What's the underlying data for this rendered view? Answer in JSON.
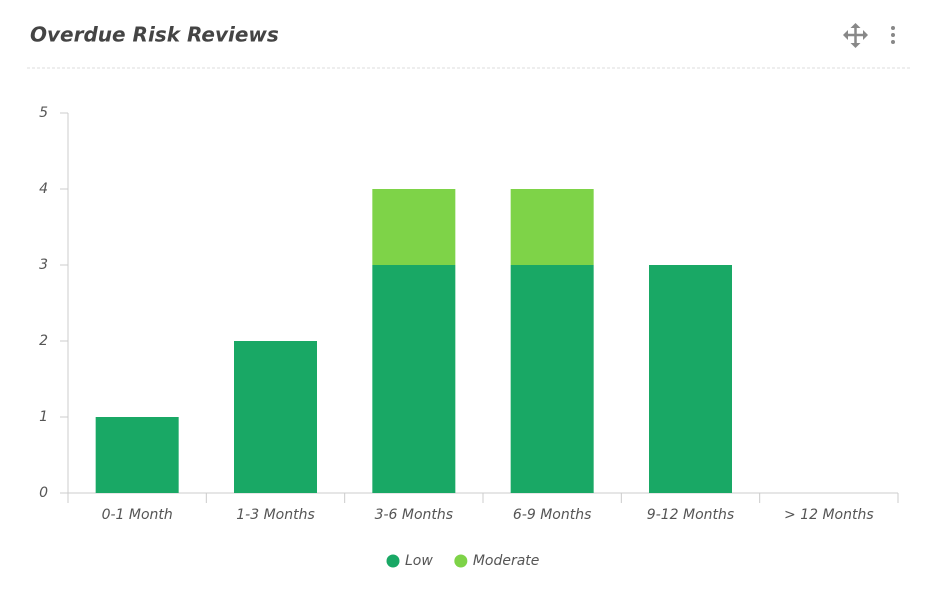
{
  "chart_data": {
    "type": "bar",
    "stacked": true,
    "title": "Overdue Risk Reviews",
    "categories": [
      "0-1 Month",
      "1-3 Months",
      "3-6 Months",
      "6-9 Months",
      "9-12 Months",
      "> 12 Months"
    ],
    "series": [
      {
        "name": "Low",
        "color": "#19a865",
        "values": [
          1,
          2,
          3,
          3,
          3,
          0
        ]
      },
      {
        "name": "Moderate",
        "color": "#7ed348",
        "values": [
          0,
          0,
          1,
          1,
          0,
          0
        ]
      }
    ],
    "ylim": [
      0,
      5
    ],
    "yticks": [
      0,
      1,
      2,
      3,
      4,
      5
    ],
    "grid": false,
    "legend": "bottom"
  }
}
